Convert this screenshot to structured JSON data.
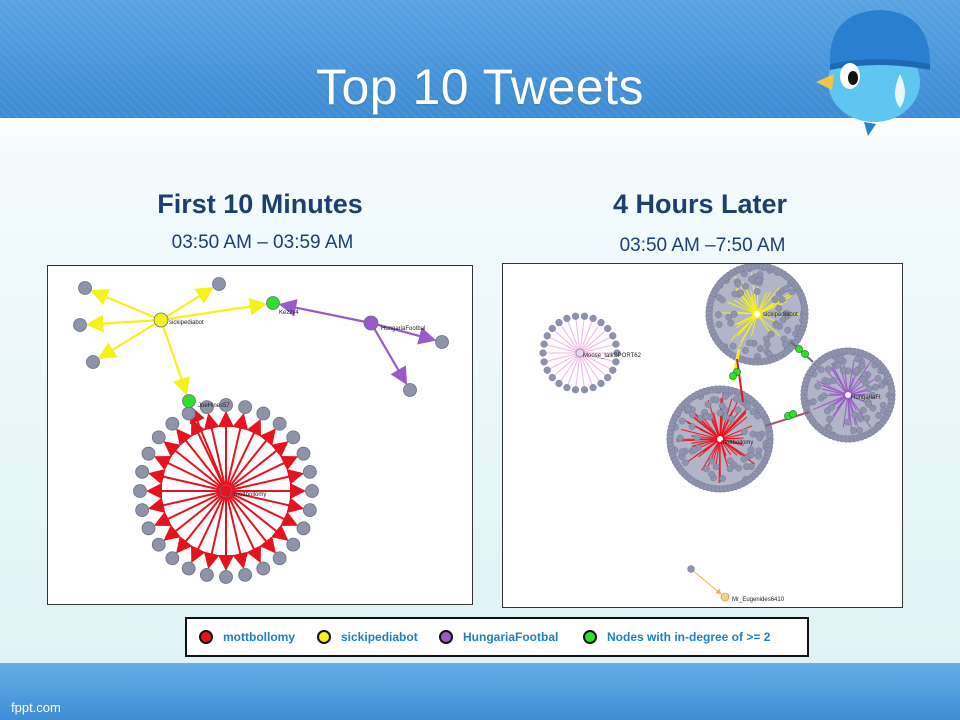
{
  "slide": {
    "title": "Top 10 Tweets",
    "footer": "fppt.com"
  },
  "left_panel": {
    "heading": "First 10 Minutes",
    "time_range": "03:50 AM – 03:59 AM",
    "node_labels": {
      "sickipediabot": "sickipediabot",
      "hungaria": "HungariaFootbal",
      "joehines": "JoeHines57",
      "kezzy": "Kezzy4",
      "mottbollomy": "mottbollomy"
    }
  },
  "right_panel": {
    "heading": "4 Hours Later",
    "time_range": "03:50 AM –7:50 AM",
    "node_labels": {
      "moose": "Moose_talkSPORT62",
      "sickipediabot": "sickipediabot",
      "hungaria": "HungariaFt",
      "mottbollomy": "mottbollomy",
      "mr_eugenides": "Mr_Eugenides6410"
    }
  },
  "legend": {
    "items": [
      {
        "label": "mottbollomy",
        "color": "#e8121e"
      },
      {
        "label": "sickipediabot",
        "color": "#f5f21a"
      },
      {
        "label": "HungariaFootbal",
        "color": "#9b59c9"
      },
      {
        "label": "Nodes with in-degree of >= 2",
        "color": "#2ee02e"
      }
    ]
  },
  "colors": {
    "red": "#e8121e",
    "yellow": "#f5f21a",
    "purple": "#9b59c9",
    "green": "#2ee02e",
    "grey_node": "#8f93a8",
    "pink": "#f2b6e6",
    "orange_edge": "#f0b25a"
  }
}
